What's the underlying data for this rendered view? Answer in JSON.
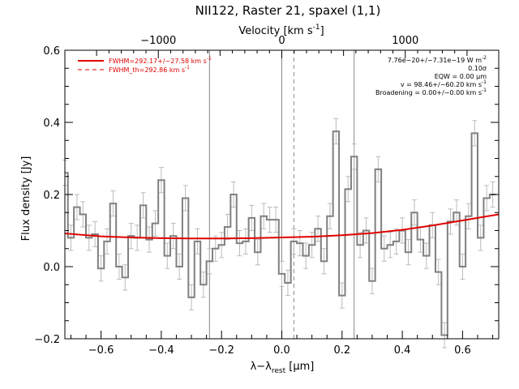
{
  "chart_data": {
    "type": "line",
    "title": "NII122, Raster 21, spaxel (1,1)",
    "xlabel_base": "λ−λ",
    "xlabel_sub": "rest",
    "xlabel_unit_pre": " [",
    "xlabel_mu": "μ",
    "xlabel_unit_post": "m]",
    "ylabel": "Flux density [Jy]",
    "top_axis": {
      "label_pre": "Velocity [km s",
      "label_sup": "-1",
      "label_post": "]",
      "ticks": [
        {
          "v": -1000,
          "label": "−1000"
        },
        {
          "v": 0,
          "label": "0"
        },
        {
          "v": 1000,
          "label": "1000"
        }
      ],
      "km_per_um": 2440
    },
    "xlim": [
      -0.72,
      0.72
    ],
    "ylim": [
      -0.2,
      0.6
    ],
    "xticks": [
      {
        "v": -0.6,
        "label": "−0.6"
      },
      {
        "v": -0.4,
        "label": "−0.4"
      },
      {
        "v": -0.2,
        "label": "−0.2"
      },
      {
        "v": 0.0,
        "label": "0.0"
      },
      {
        "v": 0.2,
        "label": "0.2"
      },
      {
        "v": 0.4,
        "label": "0.4"
      },
      {
        "v": 0.6,
        "label": "0.6"
      }
    ],
    "yticks": [
      {
        "v": -0.2,
        "label": "−0.2"
      },
      {
        "v": 0.0,
        "label": "0.0"
      },
      {
        "v": 0.2,
        "label": "0.2"
      },
      {
        "v": 0.4,
        "label": "0.4"
      },
      {
        "v": 0.6,
        "label": "0.6"
      }
    ],
    "vlines_solid": [
      -0.24,
      0.0,
      0.24
    ],
    "vline_dashed": 0.04,
    "spectrum": {
      "color": "#808080",
      "errcolor": "#bbbbbb",
      "x": [
        -0.72,
        -0.7,
        -0.68,
        -0.66,
        -0.64,
        -0.62,
        -0.6,
        -0.58,
        -0.56,
        -0.54,
        -0.52,
        -0.5,
        -0.48,
        -0.46,
        -0.44,
        -0.42,
        -0.4,
        -0.38,
        -0.36,
        -0.34,
        -0.32,
        -0.3,
        -0.28,
        -0.26,
        -0.24,
        -0.22,
        -0.2,
        -0.18,
        -0.16,
        -0.14,
        -0.12,
        -0.1,
        -0.08,
        -0.06,
        -0.04,
        -0.02,
        0.0,
        0.02,
        0.04,
        0.06,
        0.08,
        0.1,
        0.12,
        0.14,
        0.16,
        0.18,
        0.2,
        0.22,
        0.24,
        0.26,
        0.28,
        0.3,
        0.32,
        0.34,
        0.36,
        0.38,
        0.4,
        0.42,
        0.44,
        0.46,
        0.48,
        0.5,
        0.52,
        0.54,
        0.56,
        0.58,
        0.6,
        0.62,
        0.64,
        0.66,
        0.68,
        0.7
      ],
      "y": [
        0.26,
        0.08,
        0.165,
        0.145,
        0.08,
        0.09,
        -0.005,
        0.07,
        0.175,
        0.0,
        -0.03,
        0.085,
        0.08,
        0.17,
        0.075,
        0.12,
        0.24,
        0.03,
        0.085,
        0.0,
        0.19,
        -0.085,
        0.07,
        -0.05,
        0.015,
        0.05,
        0.06,
        0.11,
        0.2,
        0.065,
        0.07,
        0.135,
        0.04,
        0.14,
        0.13,
        0.13,
        -0.02,
        -0.045,
        0.07,
        0.065,
        0.03,
        0.06,
        0.105,
        0.015,
        0.14,
        0.375,
        -0.08,
        0.215,
        0.305,
        0.06,
        0.1,
        -0.04,
        0.27,
        0.05,
        0.06,
        0.07,
        0.1,
        0.04,
        0.15,
        0.075,
        0.03,
        0.115,
        -0.015,
        -0.19,
        0.125,
        0.15,
        0.0,
        0.14,
        0.37,
        0.08,
        0.19,
        0.2
      ],
      "err": 0.035
    },
    "series": [
      {
        "name": "FWHM=292.17+/−27.58 km s",
        "name_sup": "-1",
        "color": "#e00000",
        "style": "solid",
        "x": [
          -0.72,
          -0.6,
          -0.5,
          -0.4,
          -0.3,
          -0.2,
          -0.1,
          0.0,
          0.1,
          0.2,
          0.3,
          0.4,
          0.5,
          0.6,
          0.72
        ],
        "y": [
          0.092,
          0.084,
          0.081,
          0.079,
          0.078,
          0.078,
          0.079,
          0.081,
          0.083,
          0.087,
          0.093,
          0.102,
          0.114,
          0.128,
          0.145
        ]
      },
      {
        "name": "FWHM_th=292.86 km s",
        "name_sup": "-1",
        "color": "#e00000",
        "style": "dashed"
      }
    ],
    "annotations": [
      {
        "pre": "7.76e−20+/−7.31e−19 W m",
        "sup": "-2",
        "post": ""
      },
      {
        "pre": "0.10σ",
        "sup": "",
        "post": ""
      },
      {
        "pre": "EQW = 0.00 μm",
        "sup": "",
        "post": ""
      },
      {
        "pre": "v = 98.46+/−60.20 km s",
        "sup": "-1",
        "post": ""
      },
      {
        "pre": "Broadening = 0.00+/−0.00 km s",
        "sup": "-1",
        "post": ""
      }
    ]
  }
}
